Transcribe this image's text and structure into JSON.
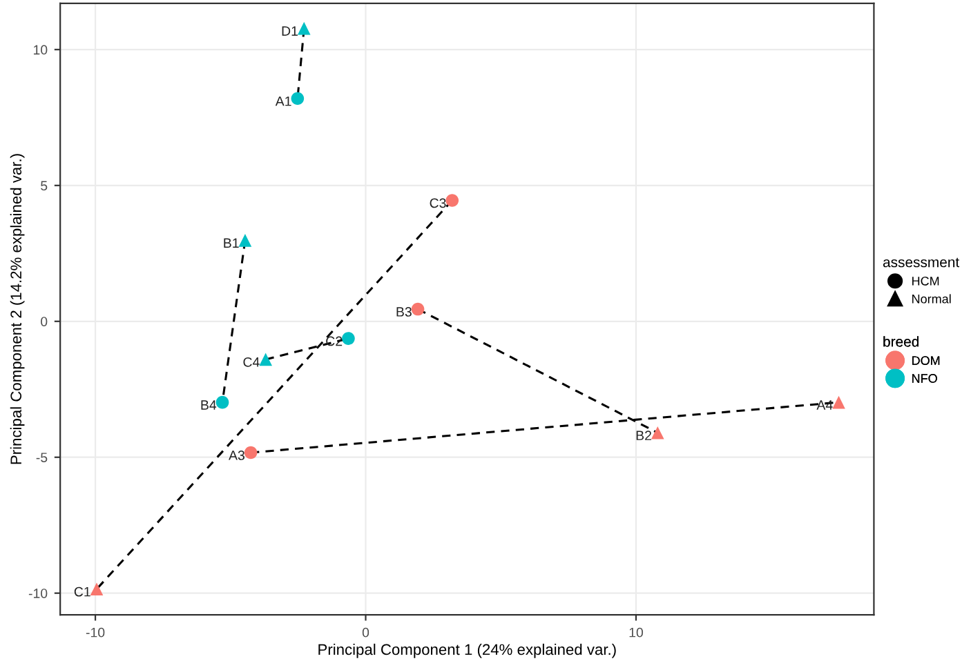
{
  "chart_data": {
    "type": "scatter",
    "xlabel": "Principal Component 1 (24% explained var.)",
    "ylabel": "Principal Component 2 (14.2% explained var.)",
    "legend_title": [
      "assessment",
      "breed"
    ],
    "xlim": [
      -11.3,
      18.8
    ],
    "ylim": [
      -10.8,
      11.7
    ],
    "xticks": [
      -10,
      0,
      10
    ],
    "yticks": [
      -10,
      -5,
      0,
      5,
      10
    ],
    "grid": true,
    "legend": "right",
    "series": [
      {
        "type": "line",
        "color": "#000000",
        "line_style": "dashed",
        "marker": "none",
        "x": [
          -2.28,
          -2.52
        ],
        "values": [
          10.78,
          8.2
        ]
      },
      {
        "type": "line",
        "color": "#000000",
        "line_style": "dashed",
        "marker": "none",
        "x": [
          3.2,
          -9.95
        ],
        "values": [
          4.45,
          -9.85
        ]
      },
      {
        "type": "line",
        "color": "#000000",
        "line_style": "dashed",
        "marker": "none",
        "x": [
          -4.46,
          -5.3
        ],
        "values": [
          2.98,
          -2.98
        ]
      },
      {
        "type": "line",
        "color": "#000000",
        "line_style": "dashed",
        "marker": "none",
        "x": [
          -3.7,
          -0.64
        ],
        "values": [
          -1.4,
          -0.63
        ]
      },
      {
        "type": "line",
        "color": "#000000",
        "line_style": "dashed",
        "marker": "none",
        "x": [
          1.93,
          10.8
        ],
        "values": [
          0.45,
          -4.1
        ]
      },
      {
        "type": "line",
        "color": "#000000",
        "line_style": "dashed",
        "marker": "none",
        "x": [
          -4.25,
          17.5
        ],
        "values": [
          -4.83,
          -2.98
        ]
      },
      {
        "name": "HCM",
        "color": "#000000",
        "marker": "circle",
        "x": [
          -2.52,
          3.2,
          1.93,
          -0.64,
          -5.3,
          -4.25
        ],
        "values": [
          8.2,
          4.45,
          0.45,
          -0.63,
          -2.98,
          -4.83
        ],
        "colors": [
          "#00bfc4",
          "#f8766d",
          "#f8766d",
          "#00bfc4",
          "#00bfc4",
          "#f8766d"
        ],
        "value_labels": [
          "A1",
          "C3",
          "B3",
          "C2",
          "B4",
          "A3"
        ]
      },
      {
        "name": "Normal",
        "color": "#000000",
        "marker": "triangle",
        "x": [
          -2.28,
          -4.46,
          -3.7,
          10.8,
          17.5,
          -9.95
        ],
        "values": [
          10.78,
          2.98,
          -1.4,
          -4.1,
          -2.98,
          -9.85
        ],
        "colors": [
          "#00bfc4",
          "#00bfc4",
          "#00bfc4",
          "#f8766d",
          "#f8766d",
          "#f8766d"
        ],
        "value_labels": [
          "D1",
          "B1",
          "C4",
          "B2",
          "A4",
          "C1"
        ]
      },
      {
        "name": "DOM",
        "color": "#f8766d",
        "marker": "circle"
      },
      {
        "name": "NFO",
        "color": "#00bfc4",
        "marker": "circle"
      }
    ]
  }
}
